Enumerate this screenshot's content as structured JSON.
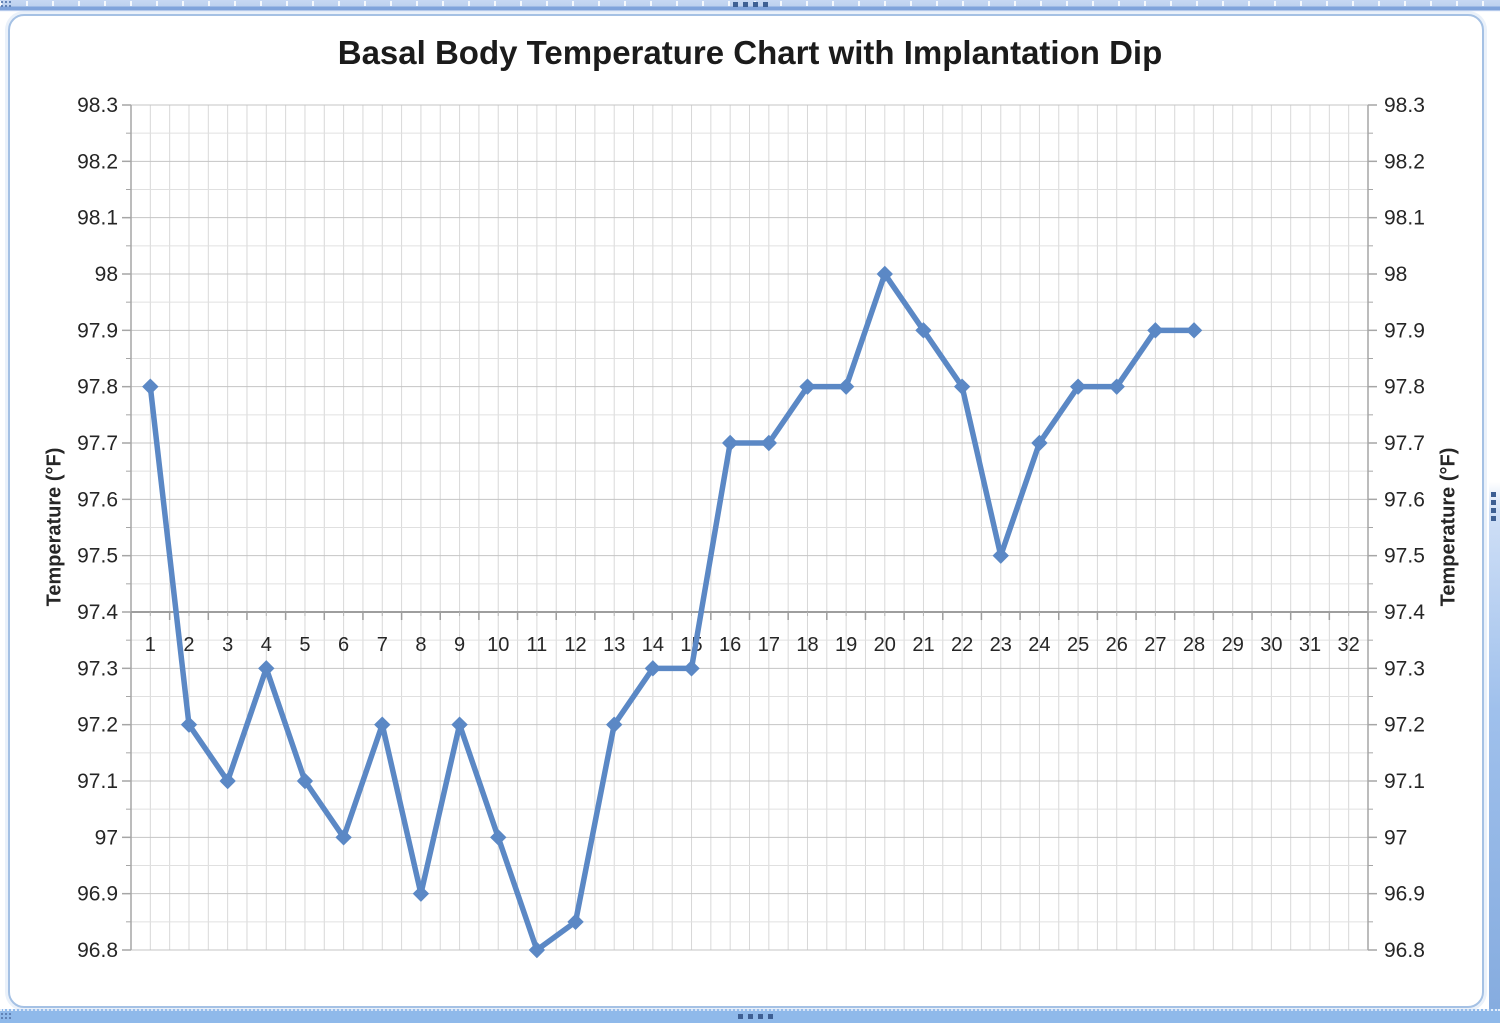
{
  "chart_data": {
    "type": "line",
    "title": "Basal Body Temperature Chart with Implantation Dip",
    "xlabel": "",
    "ylabel": "Temperature (°F)",
    "legend": "none",
    "grid": true,
    "dual_y_axis": true,
    "marker": "diamond",
    "line_color": "#5B88C5",
    "x": [
      1,
      2,
      3,
      4,
      5,
      6,
      7,
      8,
      9,
      10,
      11,
      12,
      13,
      14,
      15,
      16,
      17,
      18,
      19,
      20,
      21,
      22,
      23,
      24,
      25,
      26,
      27,
      28
    ],
    "values": [
      97.8,
      97.2,
      97.1,
      97.3,
      97.1,
      97.0,
      97.2,
      96.9,
      97.2,
      97.0,
      96.8,
      96.85,
      97.2,
      97.3,
      97.3,
      97.7,
      97.7,
      97.8,
      97.8,
      98.0,
      97.9,
      97.8,
      97.5,
      97.7,
      97.8,
      97.8,
      97.9,
      97.9
    ],
    "x_axis": {
      "categories": [
        1,
        2,
        3,
        4,
        5,
        6,
        7,
        8,
        9,
        10,
        11,
        12,
        13,
        14,
        15,
        16,
        17,
        18,
        19,
        20,
        21,
        22,
        23,
        24,
        25,
        26,
        27,
        28,
        29,
        30,
        31,
        32
      ],
      "minor_step": 0.5,
      "crosses_at_y": 97.4
    },
    "y_axis": {
      "min": 96.8,
      "max": 98.3,
      "major_step": 0.1,
      "minor_step": 0.05,
      "tick_labels": [
        "98.3",
        "98.2",
        "98.1",
        "98",
        "97.9",
        "97.8",
        "97.7",
        "97.6",
        "97.5",
        "97.4",
        "97.3",
        "97.2",
        "97.1",
        "97",
        "96.9",
        "96.8"
      ]
    },
    "colors": {
      "series": "#5B88C5",
      "gridline_major": "#C4C4C4",
      "gridline_minor": "#E0E0E0",
      "gridline_vertical": "#D8D8D8",
      "axis_line": "#A6A6A6",
      "tick_text": "#262626",
      "frame_border": "#A5C1E4",
      "selection_blue": "#8FB9EA"
    }
  }
}
